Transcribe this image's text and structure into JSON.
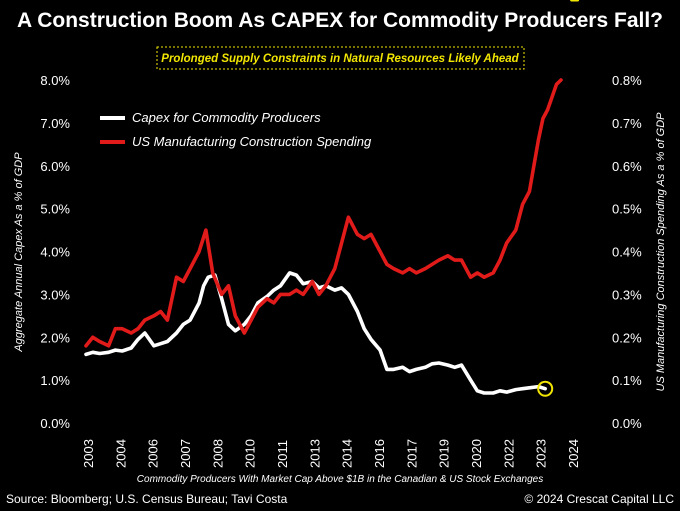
{
  "chart_data": {
    "type": "line",
    "title": "A Construction Boom As CAPEX for Commodity Producers Fall?",
    "subtitle": "Prolonged Supply Constraints in Natural Resources Likely Ahead",
    "ylabel_left": "Aggregate Annual Capex As a % of GDP",
    "ylabel_right": "US Manufacturing Construction Spending As a % of GDP",
    "xlabel": "Commodity Producers With Market Cap Above $1B in the Canadian & US Stock Exchanges",
    "x_ticks": [
      "2003",
      "2004",
      "2006",
      "2007",
      "2008",
      "2010",
      "2011",
      "2013",
      "2014",
      "2016",
      "2017",
      "2019",
      "2020",
      "2022",
      "2023",
      "2024"
    ],
    "x_range": [
      2003,
      2024.75
    ],
    "y_left_ticks": [
      "0.0%",
      "1.0%",
      "2.0%",
      "3.0%",
      "4.0%",
      "5.0%",
      "6.0%",
      "7.0%",
      "8.0%"
    ],
    "y_left_range": [
      0,
      8
    ],
    "y_right_ticks": [
      "0.0%",
      "0.1%",
      "0.2%",
      "0.3%",
      "0.4%",
      "0.5%",
      "0.6%",
      "0.7%",
      "0.8%"
    ],
    "y_right_range": [
      0,
      0.8
    ],
    "grid": false,
    "legend_placement": "top-left",
    "series": [
      {
        "name": "Capex for Commodity Producers",
        "axis": "left",
        "color": "#ffffff",
        "x": [
          2003.0,
          2003.3,
          2003.6,
          2004.0,
          2004.3,
          2004.6,
          2005.0,
          2005.3,
          2005.6,
          2006.0,
          2006.3,
          2006.6,
          2007.0,
          2007.3,
          2007.6,
          2008.0,
          2008.2,
          2008.4,
          2008.7,
          2009.0,
          2009.3,
          2009.6,
          2010.0,
          2010.3,
          2010.6,
          2011.0,
          2011.3,
          2011.6,
          2012.0,
          2012.3,
          2012.6,
          2013.0,
          2013.3,
          2013.6,
          2014.0,
          2014.3,
          2014.6,
          2015.0,
          2015.3,
          2015.6,
          2016.0,
          2016.3,
          2016.6,
          2017.0,
          2017.3,
          2017.6,
          2018.0,
          2018.3,
          2018.6,
          2019.0,
          2019.3,
          2019.6,
          2020.0,
          2020.3,
          2020.6,
          2021.0,
          2021.3,
          2021.6,
          2022.0,
          2022.3,
          2022.6,
          2023.0,
          2023.3
        ],
        "values": [
          1.6,
          1.65,
          1.62,
          1.65,
          1.7,
          1.68,
          1.75,
          1.95,
          2.1,
          1.8,
          1.85,
          1.9,
          2.1,
          2.3,
          2.4,
          2.8,
          3.2,
          3.4,
          3.45,
          2.9,
          2.3,
          2.15,
          2.3,
          2.5,
          2.8,
          2.95,
          3.1,
          3.2,
          3.5,
          3.45,
          3.25,
          3.3,
          3.15,
          3.2,
          3.1,
          3.15,
          3.0,
          2.6,
          2.2,
          1.95,
          1.7,
          1.25,
          1.25,
          1.3,
          1.2,
          1.25,
          1.3,
          1.38,
          1.4,
          1.35,
          1.3,
          1.35,
          1.0,
          0.75,
          0.7,
          0.7,
          0.75,
          0.72,
          0.78,
          0.8,
          0.82,
          0.85,
          0.8
        ]
      },
      {
        "name": "US Manufacturing Construction Spending",
        "axis": "right",
        "color": "#e11a1a",
        "x": [
          2003.0,
          2003.3,
          2003.6,
          2004.0,
          2004.3,
          2004.6,
          2005.0,
          2005.3,
          2005.6,
          2006.0,
          2006.3,
          2006.6,
          2007.0,
          2007.3,
          2007.6,
          2008.0,
          2008.3,
          2008.6,
          2009.0,
          2009.3,
          2009.6,
          2010.0,
          2010.3,
          2010.6,
          2011.0,
          2011.3,
          2011.6,
          2012.0,
          2012.3,
          2012.6,
          2013.0,
          2013.3,
          2013.6,
          2014.0,
          2014.3,
          2014.6,
          2015.0,
          2015.3,
          2015.6,
          2016.0,
          2016.3,
          2016.6,
          2017.0,
          2017.3,
          2017.6,
          2018.0,
          2018.3,
          2018.6,
          2019.0,
          2019.3,
          2019.6,
          2020.0,
          2020.3,
          2020.6,
          2021.0,
          2021.3,
          2021.6,
          2022.0,
          2022.3,
          2022.6,
          2023.0,
          2023.2,
          2023.4,
          2023.6,
          2023.8,
          2024.0
        ],
        "values": [
          0.18,
          0.2,
          0.19,
          0.18,
          0.22,
          0.22,
          0.21,
          0.22,
          0.24,
          0.25,
          0.26,
          0.24,
          0.34,
          0.33,
          0.36,
          0.4,
          0.45,
          0.35,
          0.3,
          0.32,
          0.25,
          0.21,
          0.24,
          0.27,
          0.29,
          0.28,
          0.3,
          0.3,
          0.31,
          0.3,
          0.33,
          0.3,
          0.32,
          0.36,
          0.42,
          0.48,
          0.44,
          0.43,
          0.44,
          0.4,
          0.37,
          0.36,
          0.35,
          0.36,
          0.35,
          0.36,
          0.37,
          0.38,
          0.39,
          0.38,
          0.38,
          0.34,
          0.35,
          0.34,
          0.35,
          0.38,
          0.42,
          0.45,
          0.51,
          0.54,
          0.66,
          0.71,
          0.73,
          0.76,
          0.79,
          0.8
        ]
      }
    ],
    "annotations": [
      {
        "type": "circle",
        "series": "Capex for Commodity Producers",
        "x": 2023.3,
        "y": 0.8,
        "color": "#f2e600"
      },
      {
        "type": "arrow-up",
        "x": 2024.6,
        "y_right": 0.74,
        "color": "#f2e600"
      }
    ]
  },
  "footer": {
    "source": "Source: Bloomberg; U.S. Census Bureau; Tavi Costa",
    "copyright": "© 2024 Crescat Capital LLC"
  }
}
